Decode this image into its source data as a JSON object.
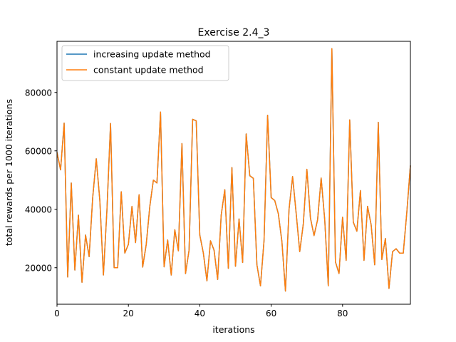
{
  "chart_data": {
    "type": "line",
    "title": "Exercise 2.4_3",
    "xlabel": "iterations",
    "ylabel": "total rewards per 1000 iterations",
    "xlim": [
      0,
      99
    ],
    "ylim": [
      7500,
      97500
    ],
    "xticks": [
      0,
      20,
      40,
      60,
      80
    ],
    "yticks": [
      20000,
      40000,
      60000,
      80000
    ],
    "ytick_labels": [
      "20000",
      "40000",
      "60000",
      "80000"
    ],
    "grid": false,
    "legend_position": "top-left",
    "x": [
      0,
      1,
      2,
      3,
      4,
      5,
      6,
      7,
      8,
      9,
      10,
      11,
      12,
      13,
      14,
      15,
      16,
      17,
      18,
      19,
      20,
      21,
      22,
      23,
      24,
      25,
      26,
      27,
      28,
      29,
      30,
      31,
      32,
      33,
      34,
      35,
      36,
      37,
      38,
      39,
      40,
      41,
      42,
      43,
      44,
      45,
      46,
      47,
      48,
      49,
      50,
      51,
      52,
      53,
      54,
      55,
      56,
      57,
      58,
      59,
      60,
      61,
      62,
      63,
      64,
      65,
      66,
      67,
      68,
      69,
      70,
      71,
      72,
      73,
      74,
      75,
      76,
      77,
      78,
      79,
      80,
      81,
      82,
      83,
      84,
      85,
      86,
      87,
      88,
      89,
      90,
      91,
      92,
      93,
      94,
      95,
      96,
      97,
      98,
      99
    ],
    "series": [
      {
        "name": "increasing update method",
        "color": "#1f77b4",
        "values": [
          59500,
          53500,
          69500,
          16800,
          49000,
          19200,
          38000,
          15000,
          31200,
          23800,
          44000,
          57300,
          43000,
          17500,
          40000,
          69400,
          20000,
          20000,
          46000,
          25000,
          28000,
          41000,
          28600,
          45000,
          20200,
          28000,
          41000,
          50000,
          49000,
          73300,
          20300,
          29500,
          17500,
          33000,
          25800,
          62500,
          18000,
          26000,
          70800,
          70300,
          31200,
          25000,
          15500,
          29200,
          26000,
          16000,
          38000,
          46700,
          19800,
          54300,
          20500,
          36700,
          21800,
          65800,
          51500,
          50600,
          21000,
          13800,
          29300,
          72200,
          44000,
          43000,
          38500,
          29000,
          12000,
          40000,
          51200,
          38600,
          25500,
          35000,
          53700,
          37000,
          31000,
          36400,
          50700,
          36400,
          13800,
          95000,
          22000,
          18000,
          37300,
          22500,
          70600,
          35600,
          32500,
          46400,
          22500,
          41000,
          34700,
          21000,
          69800,
          22800,
          30000,
          12900,
          25500,
          26500,
          25000,
          25000,
          39000,
          55000
        ]
      },
      {
        "name": "constant update method",
        "color": "#ff7f0e",
        "values": [
          59500,
          53500,
          69500,
          16800,
          49000,
          19200,
          38000,
          15000,
          31200,
          23800,
          44000,
          57300,
          43000,
          17500,
          40000,
          69400,
          20000,
          20000,
          46000,
          25000,
          28000,
          41000,
          28600,
          45000,
          20200,
          28000,
          41000,
          50000,
          49000,
          73300,
          20300,
          29500,
          17500,
          33000,
          25800,
          62500,
          18000,
          26000,
          70800,
          70300,
          31200,
          25000,
          15500,
          29200,
          26000,
          16000,
          38000,
          46700,
          19800,
          54300,
          20500,
          36700,
          21800,
          65800,
          51500,
          50600,
          21000,
          13800,
          29300,
          72200,
          44000,
          43000,
          38500,
          29000,
          12000,
          40000,
          51200,
          38600,
          25500,
          35000,
          53700,
          37000,
          31000,
          36400,
          50700,
          36400,
          13800,
          95000,
          22000,
          18000,
          37300,
          22500,
          70600,
          35600,
          32500,
          46400,
          22500,
          41000,
          34700,
          21000,
          69800,
          22800,
          30000,
          12900,
          25500,
          26500,
          25000,
          25000,
          39000,
          55000
        ]
      }
    ]
  }
}
